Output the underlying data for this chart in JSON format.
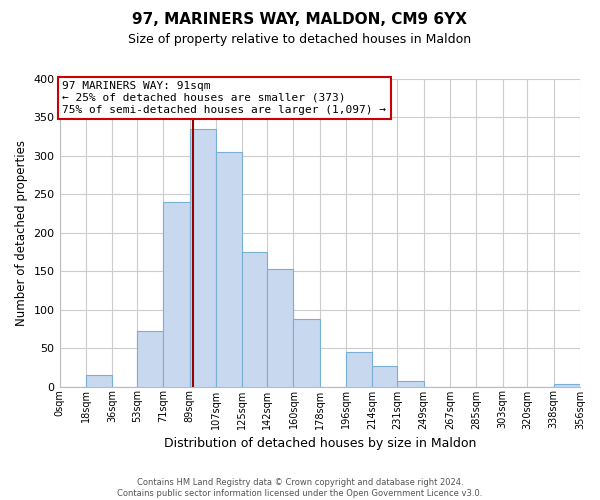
{
  "title": "97, MARINERS WAY, MALDON, CM9 6YX",
  "subtitle": "Size of property relative to detached houses in Maldon",
  "xlabel": "Distribution of detached houses by size in Maldon",
  "ylabel": "Number of detached properties",
  "bar_color": "#c8d9ef",
  "bar_edge_color": "#7aafd4",
  "background_color": "#ffffff",
  "plot_bg_color": "#ffffff",
  "grid_color": "#cccccc",
  "annotation_box_edge": "#cc0000",
  "annotation_line_color": "#990000",
  "property_line_x": 91,
  "annotation_text_line1": "97 MARINERS WAY: 91sqm",
  "annotation_text_line2": "← 25% of detached houses are smaller (373)",
  "annotation_text_line3": "75% of semi-detached houses are larger (1,097) →",
  "bin_edges": [
    0,
    18,
    36,
    53,
    71,
    89,
    107,
    125,
    142,
    160,
    178,
    196,
    214,
    231,
    249,
    267,
    285,
    303,
    320,
    338,
    356
  ],
  "bin_heights": [
    0,
    15,
    0,
    72,
    240,
    335,
    305,
    175,
    153,
    88,
    0,
    45,
    27,
    7,
    0,
    0,
    0,
    0,
    0,
    3
  ],
  "tick_labels": [
    "0sqm",
    "18sqm",
    "36sqm",
    "53sqm",
    "71sqm",
    "89sqm",
    "107sqm",
    "125sqm",
    "142sqm",
    "160sqm",
    "178sqm",
    "196sqm",
    "214sqm",
    "231sqm",
    "249sqm",
    "267sqm",
    "285sqm",
    "303sqm",
    "320sqm",
    "338sqm",
    "356sqm"
  ],
  "ylim": [
    0,
    400
  ],
  "yticks": [
    0,
    50,
    100,
    150,
    200,
    250,
    300,
    350,
    400
  ],
  "footer_line1": "Contains HM Land Registry data © Crown copyright and database right 2024.",
  "footer_line2": "Contains public sector information licensed under the Open Government Licence v3.0."
}
